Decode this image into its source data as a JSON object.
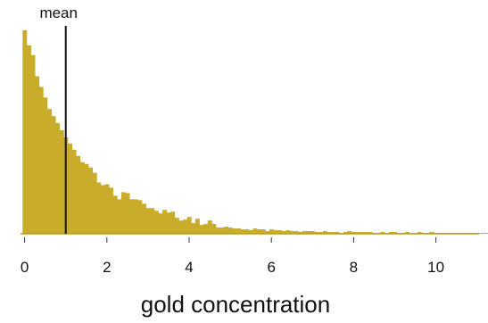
{
  "chart_data": {
    "type": "bar",
    "subtype": "histogram",
    "title": "",
    "xlabel": "gold concentration",
    "ylabel": "",
    "xlim": [
      -0.1,
      11.05
    ],
    "ylim": [
      0,
      236
    ],
    "x_ticks": [
      0,
      2,
      4,
      6,
      8,
      10
    ],
    "x_tick_labels": [
      "0",
      "2",
      "4",
      "6",
      "8",
      "10"
    ],
    "y_axis_visible": false,
    "grid": false,
    "bar_color": "#c9ac2a",
    "bin_width": 0.1,
    "bin_start": -0.05,
    "bin_values": [
      230,
      213,
      202,
      178,
      166,
      154,
      141,
      133,
      125,
      117,
      109,
      102,
      95,
      88,
      81,
      79,
      75,
      69,
      58,
      55,
      56,
      52,
      43,
      39,
      47,
      46,
      39,
      39,
      38,
      34,
      29,
      29,
      26,
      23,
      27,
      24,
      25,
      18,
      15,
      16,
      19,
      12,
      17,
      10,
      11,
      15,
      11,
      7,
      7,
      8,
      7,
      6,
      6,
      5,
      5,
      4,
      6,
      5,
      5,
      3,
      5,
      4,
      4,
      3,
      4,
      3,
      3,
      2,
      3,
      3,
      3,
      2,
      2,
      3,
      2,
      2,
      2,
      1,
      2,
      3,
      2,
      2,
      2,
      2,
      2,
      1,
      1,
      2,
      1,
      2,
      2,
      1,
      1,
      2,
      1,
      1,
      2,
      1,
      1,
      2,
      1,
      1,
      1,
      1,
      1,
      1,
      1,
      1,
      1,
      1,
      1,
      1,
      1,
      1,
      1,
      1,
      1,
      1,
      1,
      1,
      1,
      1,
      1,
      1,
      1,
      1,
      1,
      1,
      1,
      1,
      1,
      1,
      1,
      1,
      1,
      1,
      1,
      1,
      1,
      1,
      1,
      1,
      1,
      1,
      1,
      1,
      1,
      1,
      1,
      1,
      1,
      1,
      1,
      1,
      1,
      1,
      1,
      1,
      1,
      1,
      1,
      1,
      1,
      1,
      1,
      1,
      1,
      1,
      1,
      1,
      1,
      1,
      1,
      1,
      1,
      1,
      1,
      1,
      1,
      1,
      1,
      1,
      1,
      1,
      1,
      1,
      1,
      1,
      1,
      1,
      1,
      1,
      1,
      1,
      1,
      1,
      1,
      1,
      1,
      1,
      1,
      1,
      1,
      1,
      1,
      1,
      1,
      1,
      1,
      1,
      1,
      1
    ],
    "annotations": [
      {
        "label": "mean",
        "x": 1.0,
        "kind": "vertical-line",
        "color": "#111111"
      }
    ]
  }
}
